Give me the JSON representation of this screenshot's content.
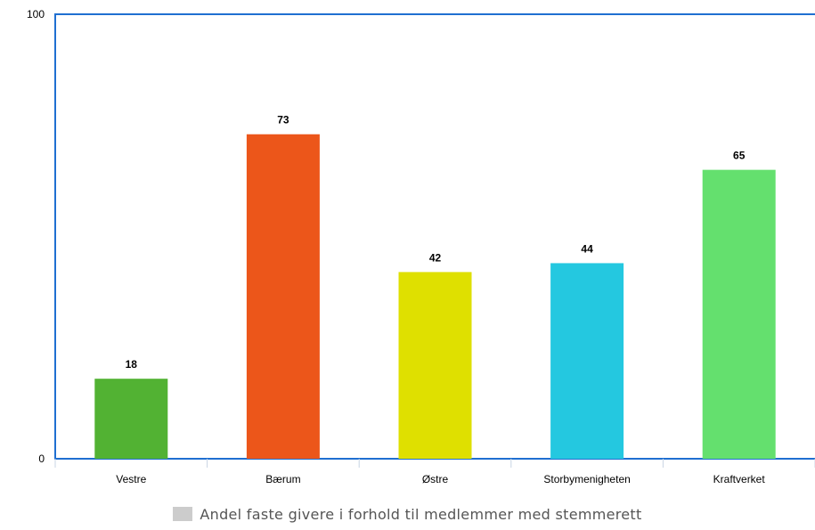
{
  "chart_data": {
    "type": "bar",
    "categories": [
      "Vestre",
      "Bærum",
      "Østre",
      "Storbymenigheten",
      "Kraftverket"
    ],
    "values": [
      18,
      73,
      42,
      44,
      65
    ],
    "colors": [
      "#52b233",
      "#ec561a",
      "#dfe000",
      "#24c8e0",
      "#64e06e"
    ],
    "ylim": [
      0,
      100
    ],
    "yticks": [
      "0",
      "100"
    ],
    "axis_color": "#1f6fd1",
    "grid": false,
    "legend": {
      "position": "bottom",
      "label": "Andel faste givere i forhold til medlemmer med stemmerett",
      "color": "#cccccc"
    }
  }
}
